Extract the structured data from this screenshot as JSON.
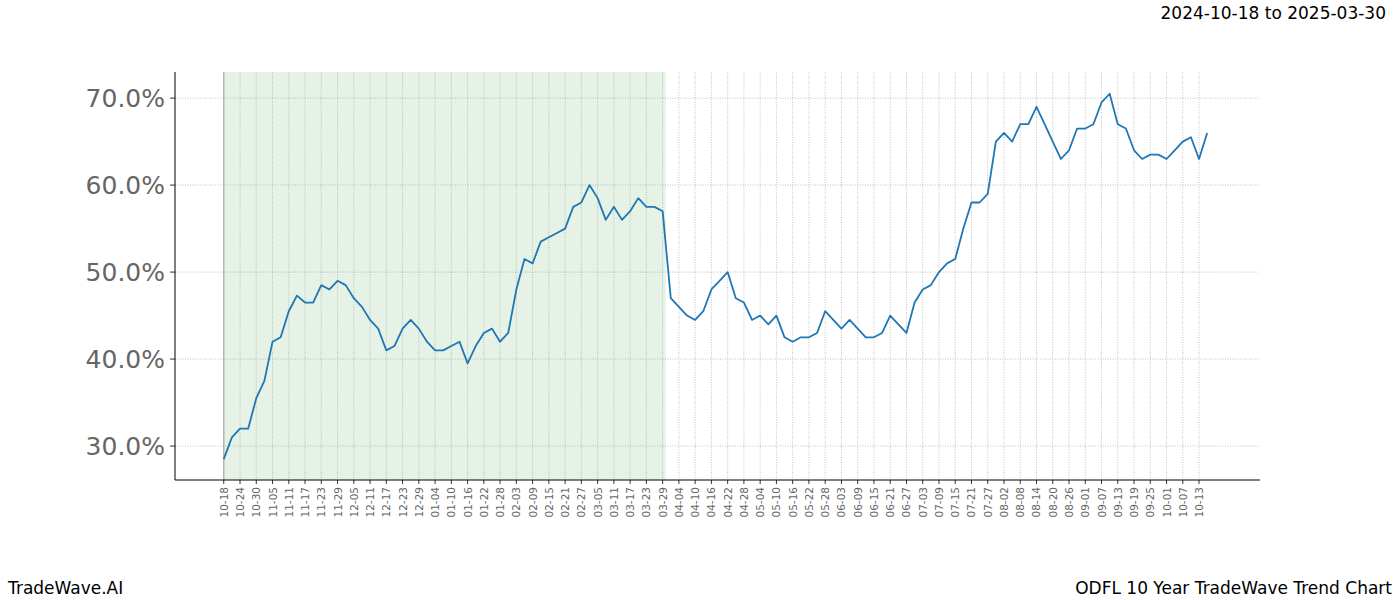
{
  "chart_data": {
    "type": "line",
    "title": "ODFL 10 Year TradeWave Trend Chart",
    "subtitle": "2024-10-18 to 2025-03-30",
    "source": "TradeWave.AI",
    "categories": [
      "10-18",
      null,
      "10-24",
      null,
      "10-30",
      null,
      "11-05",
      null,
      "11-11",
      null,
      "11-17",
      null,
      "11-23",
      null,
      "11-29",
      null,
      "12-05",
      null,
      "12-11",
      null,
      "12-17",
      null,
      "12-23",
      null,
      "12-29",
      null,
      "01-04",
      null,
      "01-10",
      null,
      "01-16",
      null,
      "01-22",
      null,
      "01-28",
      null,
      "02-03",
      null,
      "02-09",
      null,
      "02-15",
      null,
      "02-21",
      null,
      "02-27",
      null,
      "03-05",
      null,
      "03-11",
      null,
      "03-17",
      null,
      "03-23",
      null,
      "03-29",
      null,
      "04-04",
      null,
      "04-10",
      null,
      "04-16",
      null,
      "04-22",
      null,
      "04-28",
      null,
      "05-04",
      null,
      "05-10",
      null,
      "05-16",
      null,
      "05-22",
      null,
      "05-28",
      null,
      "06-03",
      null,
      "06-09",
      null,
      "06-15",
      null,
      "06-21",
      null,
      "06-27",
      null,
      "07-03",
      null,
      "07-09",
      null,
      "07-15",
      null,
      "07-21",
      null,
      "07-27",
      null,
      "08-02",
      null,
      "08-08",
      null,
      "08-14",
      null,
      "08-20",
      null,
      "08-26",
      null,
      "09-01",
      null,
      "09-07",
      null,
      "09-13",
      null,
      "09-19",
      null,
      "09-25",
      null,
      "10-01",
      null,
      "10-07",
      null,
      "10-13",
      null
    ],
    "values": [
      28.5,
      31,
      32,
      32,
      35.5,
      37.5,
      42,
      42.5,
      45.5,
      47.3,
      46.5,
      46.5,
      48.5,
      48,
      49,
      48.5,
      47,
      46,
      44.5,
      43.5,
      41,
      41.5,
      43.5,
      44.5,
      43.5,
      42,
      41,
      41,
      41.5,
      42,
      39.5,
      41.5,
      43,
      43.5,
      42,
      43,
      48,
      51.5,
      51,
      53.5,
      54,
      54.5,
      55,
      57.5,
      58,
      60,
      58.5,
      56,
      57.5,
      56,
      57,
      58.5,
      57.5,
      57.5,
      57,
      47,
      46,
      45,
      44.5,
      45.5,
      48,
      49,
      50,
      47,
      46.5,
      44.5,
      45,
      44,
      45,
      42.5,
      42,
      42.5,
      42.5,
      43,
      45.5,
      44.5,
      43.5,
      44.5,
      43.5,
      42.5,
      42.5,
      43,
      45,
      44,
      43,
      46.5,
      48,
      48.5,
      50,
      51,
      51.5,
      55,
      58,
      58,
      59,
      65,
      66,
      65,
      67,
      67,
      69,
      67,
      65,
      63,
      64,
      66.5,
      66.5,
      67,
      69.5,
      70.5,
      67,
      66.5,
      64,
      63,
      63.5,
      63.5,
      63,
      64,
      65,
      65.5,
      63,
      66
    ],
    "shaded_range": [
      "10-18",
      "03-29"
    ],
    "color": "#1f77b4",
    "ylim": [
      26.1,
      73.0
    ],
    "yticks": [
      {
        "value": 30,
        "label": "30.0%"
      },
      {
        "value": 40,
        "label": "40.0%"
      },
      {
        "value": 50,
        "label": "50.0%"
      },
      {
        "value": 60,
        "label": "60.0%"
      },
      {
        "value": 70,
        "label": "70.0%"
      }
    ],
    "grid": true
  }
}
